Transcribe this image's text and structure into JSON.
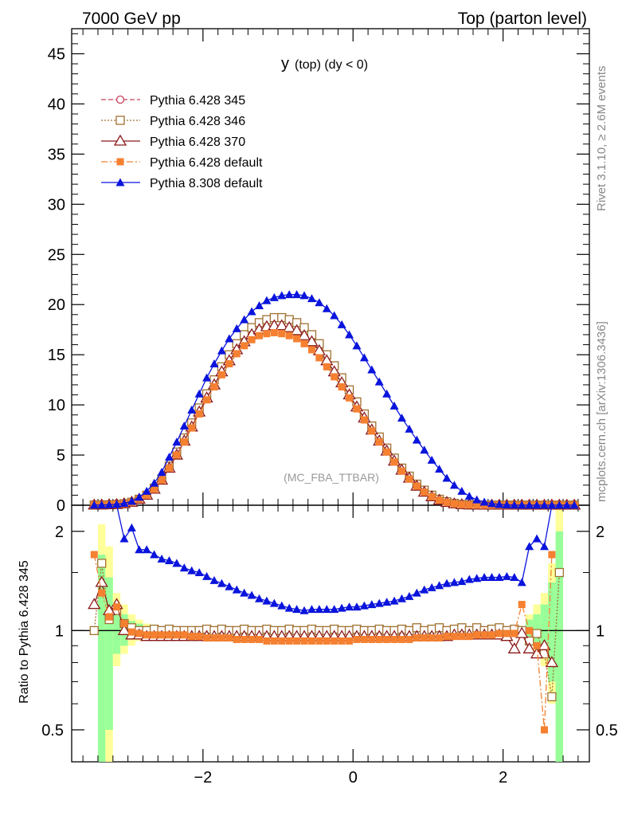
{
  "header": {
    "left": "7000 GeV pp",
    "right": "Top (parton level)"
  },
  "side_labels": {
    "rivet": "Rivet 3.1.10, ≥ 2.6M events",
    "mcplots": "mcplots.cern.ch [arXiv:1306.3436]"
  },
  "chart_data": {
    "type": "line",
    "title_main": "y",
    "title_sub": "(top) (dy < 0)",
    "watermark": "(MC_FBA_TTBAR)",
    "ratio_ylabel": "Ratio to Pythia 6.428 345",
    "xlim": [
      -3.75,
      3.15
    ],
    "ylim": [
      0,
      47.5
    ],
    "ratio_ylim": [
      0.4,
      2.4
    ],
    "ratio_scale": "log",
    "x_ticks": [
      -2,
      0,
      2
    ],
    "x_tick_labels": [
      "−2",
      "0",
      "2"
    ],
    "y_ticks": [
      0,
      5,
      10,
      15,
      20,
      25,
      30,
      35,
      40,
      45
    ],
    "y_tick_labels": [
      "0",
      "5",
      "10",
      "15",
      "20",
      "25",
      "30",
      "35",
      "40",
      "45"
    ],
    "ratio_ticks": [
      0.5,
      1,
      2
    ],
    "ratio_tick_labels": [
      "0.5",
      "1",
      "2"
    ],
    "legend_position": "top-left",
    "x": [
      -3.45,
      -3.35,
      -3.25,
      -3.15,
      -3.05,
      -2.95,
      -2.85,
      -2.75,
      -2.65,
      -2.55,
      -2.45,
      -2.35,
      -2.25,
      -2.15,
      -2.05,
      -1.95,
      -1.85,
      -1.75,
      -1.65,
      -1.55,
      -1.45,
      -1.35,
      -1.25,
      -1.15,
      -1.05,
      -0.95,
      -0.85,
      -0.75,
      -0.65,
      -0.55,
      -0.45,
      -0.35,
      -0.25,
      -0.15,
      -0.05,
      0.05,
      0.15,
      0.25,
      0.35,
      0.45,
      0.55,
      0.65,
      0.75,
      0.85,
      0.95,
      1.05,
      1.15,
      1.25,
      1.35,
      1.45,
      1.55,
      1.65,
      1.75,
      1.85,
      1.95,
      2.05,
      2.15,
      2.25,
      2.35,
      2.45,
      2.55,
      2.65,
      2.75,
      2.85,
      2.95
    ],
    "series": [
      {
        "name": "Pythia 6.428 345",
        "color": "#c8405a",
        "marker": "open-circle",
        "line": "dashed",
        "values": [
          0.02,
          0.03,
          0.05,
          0.08,
          0.15,
          0.3,
          0.6,
          1.0,
          1.7,
          2.6,
          3.9,
          5.2,
          6.6,
          8.1,
          9.6,
          11.0,
          12.4,
          13.7,
          14.9,
          16.0,
          16.9,
          17.6,
          18.1,
          18.4,
          18.6,
          18.6,
          18.4,
          18.1,
          17.6,
          16.9,
          16.0,
          14.9,
          13.8,
          12.6,
          11.4,
          10.2,
          9.0,
          7.8,
          6.7,
          5.6,
          4.6,
          3.6,
          2.8,
          2.0,
          1.4,
          0.9,
          0.55,
          0.3,
          0.15,
          0.07,
          0.04,
          0.02,
          0.01,
          0.01,
          0.01,
          0.01,
          0.01,
          0.01,
          0.01,
          0.01,
          0.01,
          0.01,
          0.01,
          0.01,
          0.01
        ],
        "ratio": null
      },
      {
        "name": "Pythia 6.428 346",
        "color": "#a07030",
        "marker": "open-square",
        "line": "dotted",
        "values": [
          0.02,
          0.03,
          0.05,
          0.08,
          0.15,
          0.3,
          0.6,
          1.0,
          1.7,
          2.6,
          3.9,
          5.3,
          6.7,
          8.2,
          9.7,
          11.1,
          12.5,
          13.8,
          15.0,
          16.1,
          17.0,
          17.7,
          18.2,
          18.5,
          18.7,
          18.7,
          18.5,
          18.2,
          17.7,
          17.0,
          16.1,
          15.0,
          13.9,
          12.7,
          11.5,
          10.3,
          9.1,
          7.9,
          6.8,
          5.7,
          4.7,
          3.7,
          2.9,
          2.1,
          1.5,
          1.0,
          0.6,
          0.35,
          0.18,
          0.08,
          0.04,
          0.02,
          0.01,
          0.01,
          0.01,
          0.01,
          0.01,
          0.01,
          0.01,
          0.01,
          0.01,
          0.01,
          0.01,
          0.01,
          0.01
        ],
        "ratio": [
          1.0,
          1.6,
          1.08,
          1.15,
          1.05,
          1.02,
          1.0,
          1.0,
          1.01,
          1.0,
          1.01,
          1.0,
          1.0,
          1.0,
          1.0,
          1.01,
          1.0,
          1.01,
          1.0,
          1.0,
          1.01,
          1.0,
          1.0,
          1.01,
          1.0,
          1.0,
          1.01,
          1.0,
          1.0,
          1.01,
          1.0,
          1.0,
          1.01,
          1.0,
          1.0,
          1.01,
          1.0,
          1.0,
          1.01,
          1.0,
          1.0,
          1.01,
          1.0,
          1.02,
          1.0,
          1.01,
          1.02,
          1.0,
          1.01,
          1.02,
          1.0,
          1.02,
          1.0,
          1.01,
          1.02,
          1.0,
          1.01,
          1.0,
          0.93,
          0.98,
          0.85,
          0.63,
          1.5,
          null,
          null
        ]
      },
      {
        "name": "Pythia 6.428 370",
        "color": "#8b1a1a",
        "marker": "open-triangle",
        "line": "solid",
        "values": [
          0.02,
          0.03,
          0.05,
          0.08,
          0.15,
          0.3,
          0.6,
          1.0,
          1.6,
          2.5,
          3.7,
          5.0,
          6.4,
          7.8,
          9.3,
          10.7,
          12.0,
          13.3,
          14.4,
          15.5,
          16.3,
          17.0,
          17.5,
          17.8,
          17.9,
          17.9,
          17.7,
          17.4,
          16.9,
          16.3,
          15.4,
          14.4,
          13.3,
          12.2,
          11.0,
          9.8,
          8.7,
          7.5,
          6.4,
          5.4,
          4.4,
          3.5,
          2.7,
          1.9,
          1.3,
          0.85,
          0.5,
          0.28,
          0.14,
          0.06,
          0.03,
          0.02,
          0.01,
          0.01,
          0.01,
          0.01,
          0.01,
          0.01,
          0.01,
          0.01,
          0.01,
          0.01,
          0.01,
          0.01,
          0.01
        ],
        "ratio": [
          1.2,
          1.4,
          1.15,
          1.2,
          1.0,
          0.97,
          0.97,
          0.96,
          0.96,
          0.96,
          0.96,
          0.96,
          0.96,
          0.96,
          0.96,
          0.96,
          0.96,
          0.96,
          0.96,
          0.96,
          0.96,
          0.96,
          0.96,
          0.96,
          0.96,
          0.96,
          0.96,
          0.96,
          0.96,
          0.96,
          0.96,
          0.96,
          0.96,
          0.96,
          0.96,
          0.96,
          0.96,
          0.96,
          0.96,
          0.96,
          0.96,
          0.96,
          0.96,
          0.96,
          0.96,
          0.96,
          0.96,
          0.96,
          0.97,
          0.97,
          0.97,
          0.97,
          0.97,
          0.97,
          0.97,
          0.96,
          0.88,
          0.98,
          0.88,
          0.85,
          0.9,
          0.8,
          null,
          null,
          null
        ]
      },
      {
        "name": "Pythia 6.428 default",
        "color": "#f58030",
        "marker": "filled-square",
        "line": "dashdot",
        "values": [
          0.02,
          0.03,
          0.05,
          0.08,
          0.15,
          0.3,
          0.6,
          1.0,
          1.6,
          2.5,
          3.7,
          5.0,
          6.3,
          7.7,
          9.1,
          10.5,
          11.8,
          13.0,
          14.1,
          15.1,
          15.9,
          16.5,
          16.9,
          17.1,
          17.2,
          17.1,
          16.9,
          16.6,
          16.1,
          15.5,
          14.7,
          13.8,
          12.8,
          11.8,
          10.7,
          9.6,
          8.5,
          7.4,
          6.3,
          5.3,
          4.3,
          3.4,
          2.6,
          1.9,
          1.3,
          0.85,
          0.5,
          0.28,
          0.14,
          0.06,
          0.03,
          0.02,
          0.01,
          0.01,
          0.01,
          0.01,
          0.01,
          0.01,
          0.01,
          0.01,
          0.01,
          0.01,
          0.01,
          0.01,
          0.01
        ],
        "ratio": [
          1.7,
          1.3,
          1.1,
          1.18,
          1.05,
          0.99,
          0.98,
          0.97,
          0.97,
          0.97,
          0.97,
          0.97,
          0.97,
          0.96,
          0.96,
          0.95,
          0.95,
          0.95,
          0.95,
          0.94,
          0.94,
          0.94,
          0.94,
          0.93,
          0.93,
          0.93,
          0.93,
          0.93,
          0.93,
          0.93,
          0.93,
          0.93,
          0.93,
          0.93,
          0.93,
          0.94,
          0.94,
          0.94,
          0.94,
          0.94,
          0.94,
          0.94,
          0.94,
          0.95,
          0.95,
          0.95,
          0.95,
          0.96,
          0.96,
          0.96,
          0.96,
          0.97,
          0.97,
          0.97,
          0.98,
          0.98,
          0.98,
          1.2,
          1.0,
          0.9,
          0.5,
          1.7,
          null,
          null,
          null
        ]
      },
      {
        "name": "Pythia 8.308 default",
        "color": "#0a14dc",
        "marker": "filled-triangle",
        "line": "solid",
        "values": [
          0.02,
          0.03,
          0.05,
          0.1,
          0.2,
          0.4,
          0.8,
          1.4,
          2.2,
          3.3,
          4.8,
          6.3,
          7.9,
          9.5,
          11.1,
          12.7,
          14.1,
          15.4,
          16.6,
          17.6,
          18.5,
          19.3,
          19.9,
          20.4,
          20.7,
          20.9,
          21.0,
          21.0,
          20.9,
          20.6,
          20.2,
          19.6,
          18.9,
          18.0,
          17.0,
          15.9,
          14.7,
          13.5,
          12.3,
          11.1,
          9.9,
          8.7,
          7.6,
          6.5,
          5.5,
          4.5,
          3.6,
          2.7,
          2.0,
          1.4,
          0.9,
          0.55,
          0.32,
          0.17,
          0.08,
          0.04,
          0.02,
          0.01,
          0.01,
          0.01,
          0.01,
          0.01,
          0.01,
          0.01,
          0.01
        ],
        "ratio": [
          null,
          null,
          null,
          3.0,
          1.9,
          2.05,
          1.76,
          1.76,
          1.7,
          1.65,
          1.63,
          1.6,
          1.55,
          1.52,
          1.5,
          1.46,
          1.42,
          1.39,
          1.36,
          1.33,
          1.3,
          1.28,
          1.25,
          1.23,
          1.21,
          1.19,
          1.17,
          1.16,
          1.15,
          1.16,
          1.16,
          1.16,
          1.16,
          1.17,
          1.18,
          1.18,
          1.19,
          1.2,
          1.21,
          1.22,
          1.23,
          1.25,
          1.27,
          1.3,
          1.33,
          1.35,
          1.37,
          1.39,
          1.4,
          1.41,
          1.43,
          1.44,
          1.45,
          1.45,
          1.45,
          1.46,
          1.45,
          1.4,
          1.8,
          1.9,
          1.8,
          3.0,
          null,
          null,
          null
        ]
      }
    ],
    "ratio_band_x": [
      -3.35,
      -3.25,
      -3.15,
      -3.05,
      -2.95,
      -2.85,
      -2.75,
      2.35,
      2.45,
      2.55,
      2.65,
      2.75
    ],
    "ratio_band_green": [
      [
        0.35,
        1.7
      ],
      [
        0.5,
        1.45
      ],
      [
        0.85,
        1.18
      ],
      [
        0.9,
        1.12
      ],
      [
        0.94,
        1.07
      ],
      [
        0.96,
        1.05
      ],
      [
        0.97,
        1.03
      ],
      [
        0.94,
        1.08
      ],
      [
        0.9,
        1.12
      ],
      [
        0.85,
        1.2
      ],
      [
        0.7,
        1.4
      ],
      [
        0.4,
        2.0
      ]
    ],
    "ratio_band_yellow": [
      [
        0.3,
        2.1
      ],
      [
        0.4,
        1.8
      ],
      [
        0.78,
        1.3
      ],
      [
        0.85,
        1.2
      ],
      [
        0.9,
        1.12
      ],
      [
        0.93,
        1.08
      ],
      [
        0.95,
        1.05
      ],
      [
        0.9,
        1.12
      ],
      [
        0.85,
        1.2
      ],
      [
        0.78,
        1.3
      ],
      [
        0.6,
        1.6
      ],
      [
        0.35,
        2.4
      ]
    ]
  }
}
